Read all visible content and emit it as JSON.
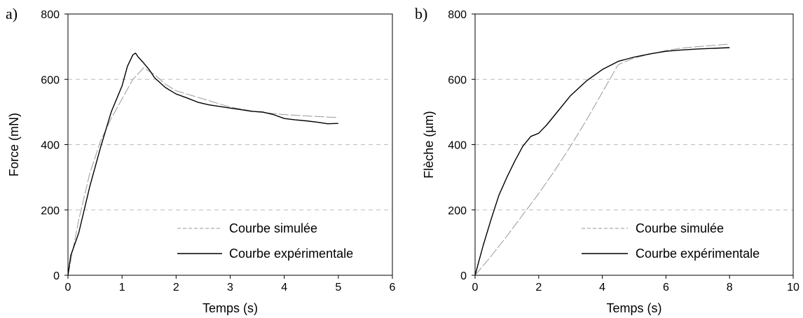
{
  "chart_data": [
    {
      "type": "line",
      "panel_label": "a)",
      "xlabel": "Temps (s)",
      "ylabel": "Force (mN)",
      "xlim": [
        0,
        6
      ],
      "ylim": [
        0,
        800
      ],
      "xticks": [
        "0",
        "1",
        "2",
        "3",
        "4",
        "5",
        "6"
      ],
      "yticks": [
        "0",
        "200",
        "400",
        "600",
        "800"
      ],
      "grid": "horizontal dashed",
      "legend_position": "bottom-right",
      "series": [
        {
          "name": "Courbe simulée",
          "style": "dashed",
          "color": "#999999",
          "x": [
            0,
            0.2,
            0.4,
            0.6,
            0.8,
            1.0,
            1.2,
            1.4,
            1.6,
            1.8,
            2.0,
            2.5,
            3.0,
            3.5,
            4.0,
            4.5,
            5.0
          ],
          "y": [
            0,
            170,
            310,
            410,
            480,
            540,
            600,
            635,
            615,
            585,
            565,
            540,
            515,
            500,
            492,
            487,
            483
          ]
        },
        {
          "name": "Courbe expérimentale",
          "style": "solid",
          "color": "#000000",
          "x": [
            0,
            0.05,
            0.2,
            0.4,
            0.6,
            0.8,
            1.0,
            1.1,
            1.2,
            1.25,
            1.3,
            1.4,
            1.5,
            1.6,
            1.8,
            2.0,
            2.2,
            2.4,
            2.6,
            2.8,
            3.0,
            3.2,
            3.4,
            3.6,
            3.8,
            4.0,
            4.2,
            4.4,
            4.6,
            4.8,
            5.0
          ],
          "y": [
            0,
            60,
            130,
            270,
            390,
            500,
            580,
            640,
            675,
            680,
            668,
            650,
            630,
            605,
            575,
            555,
            543,
            530,
            522,
            517,
            512,
            507,
            502,
            500,
            492,
            480,
            476,
            473,
            469,
            464,
            465
          ]
        }
      ]
    },
    {
      "type": "line",
      "panel_label": "b)",
      "xlabel": "Temps (s)",
      "ylabel": "Flèche (µm)",
      "xlim": [
        0,
        10
      ],
      "ylim": [
        0,
        800
      ],
      "xticks": [
        "0",
        "2",
        "4",
        "6",
        "8",
        "10"
      ],
      "yticks": [
        "0",
        "200",
        "400",
        "600",
        "800"
      ],
      "grid": "horizontal dashed",
      "legend_position": "bottom-right",
      "series": [
        {
          "name": "Courbe simulée",
          "style": "dashed",
          "color": "#999999",
          "x": [
            0,
            0.5,
            1.0,
            1.5,
            2.0,
            2.5,
            3.0,
            3.5,
            4.0,
            4.5,
            5.0,
            5.5,
            6.0,
            6.5,
            7.0,
            7.5,
            8.0
          ],
          "y": [
            0,
            58,
            120,
            185,
            250,
            320,
            395,
            475,
            560,
            645,
            665,
            677,
            688,
            696,
            700,
            704,
            708
          ]
        },
        {
          "name": "Courbe expérimentale",
          "style": "solid",
          "color": "#000000",
          "x": [
            0,
            0.25,
            0.5,
            0.75,
            1.0,
            1.25,
            1.5,
            1.75,
            2.0,
            2.25,
            2.5,
            3.0,
            3.5,
            4.0,
            4.5,
            5.0,
            5.5,
            6.0,
            6.5,
            7.0,
            7.5,
            8.0
          ],
          "y": [
            0,
            90,
            170,
            245,
            300,
            350,
            395,
            425,
            435,
            460,
            490,
            550,
            595,
            630,
            655,
            668,
            678,
            686,
            690,
            693,
            695,
            697
          ]
        }
      ]
    }
  ]
}
